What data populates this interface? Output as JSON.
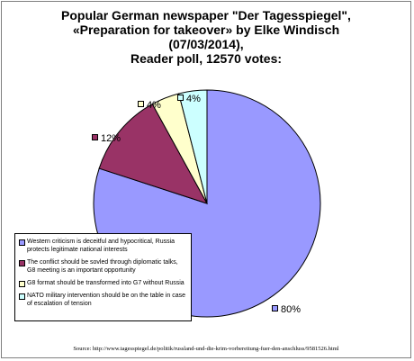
{
  "chart_data": {
    "type": "pie",
    "title_lines": [
      "Popular German newspaper \"Der Tagesspiegel\",",
      "«Preparation for takeover» by Elke Windisch",
      "(07/03/2014),",
      "Reader poll, 12570 votes:"
    ],
    "categories": [
      "Western criticism is deceitful and hypocritical, Russia protects legitimate national interests",
      "The conflict should be sovled through diplomatic talks, G8 meeting is an important opportunity",
      "G8 format should be transformed into G7 without Russia",
      "NATO military intervention should be on the table in case of escalation of tension"
    ],
    "values": [
      80,
      12,
      4,
      4
    ],
    "value_labels": [
      "80%",
      "12%",
      "4%",
      "4%"
    ],
    "colors": [
      "#9999ff",
      "#993366",
      "#ffffcc",
      "#ccffff"
    ],
    "legend_position": "bottom-left"
  },
  "source": "Source: http://www.tagesspiegel.de/politik/russland-und-die-krim-vorbereitung-fuer-den-anschluss/9581526.html"
}
